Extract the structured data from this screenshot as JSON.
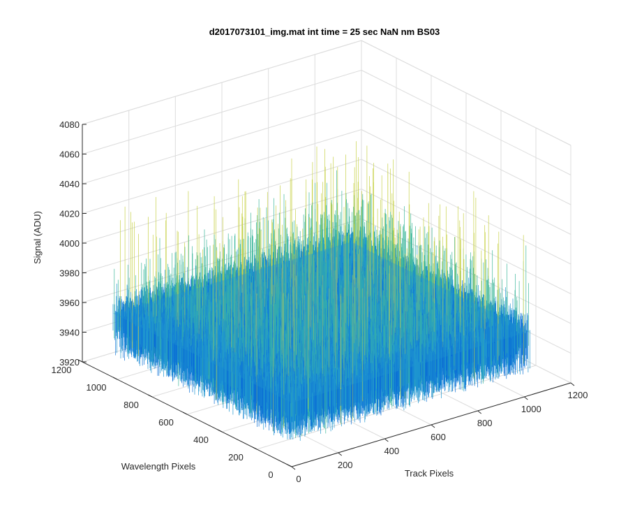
{
  "chart_data": {
    "type": "surface",
    "title": "d2017073101_img.mat int time = 25 sec  NaN nm BS03",
    "xlabel": "Track Pixels",
    "ylabel": "Wavelength Pixels",
    "zlabel": "Signal (ADU)",
    "xlim": [
      0,
      1200
    ],
    "ylim": [
      0,
      1200
    ],
    "zlim": [
      3920,
      4080
    ],
    "x_ticks": [
      0,
      200,
      400,
      600,
      800,
      1000,
      1200
    ],
    "x_tick_labels": [
      "0",
      "200",
      "400",
      "600",
      "800",
      "1000",
      "1200"
    ],
    "y_ticks": [
      0,
      200,
      400,
      600,
      800,
      1000,
      1200
    ],
    "y_tick_labels": [
      "0",
      "200",
      "400",
      "600",
      "800",
      "1000",
      "1200"
    ],
    "z_ticks": [
      3920,
      3940,
      3960,
      3980,
      4000,
      4020,
      4040,
      4060,
      4080
    ],
    "z_tick_labels": [
      "3920",
      "3940",
      "3960",
      "3980",
      "4000",
      "4020",
      "4040",
      "4060",
      "4080"
    ],
    "data_extent": {
      "x": [
        0,
        1024
      ],
      "y": [
        0,
        1024
      ]
    },
    "signal_mean": 3960,
    "signal_spread": [
      3935,
      4040
    ],
    "grid": true,
    "colors": {
      "low": "#0a6fd6",
      "mid": "#1f96d0",
      "high": "#3fb89c",
      "peak": "#c8d24a"
    }
  }
}
